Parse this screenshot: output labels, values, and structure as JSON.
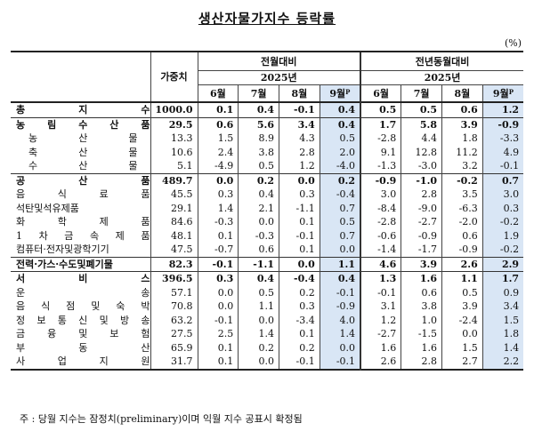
{
  "title": "생산자물가지수 등락률",
  "unit": "(%)",
  "header": {
    "weight": "가중치",
    "mom": "전월대비",
    "yoy": "전년동월대비",
    "year": "2025년",
    "months": [
      "6월",
      "7월",
      "8월",
      "9월"
    ],
    "prelim_mark": "P"
  },
  "rows": [
    {
      "name": "총 지 수",
      "type": "total",
      "weight": "1000.0",
      "mom": [
        "0.1",
        "0.4",
        "-0.1",
        "0.4"
      ],
      "yoy": [
        "0.5",
        "0.5",
        "0.6",
        "1.2"
      ]
    },
    {
      "name": "농 림 수 산 품",
      "type": "major",
      "weight": "29.5",
      "mom": [
        "0.6",
        "5.6",
        "3.4",
        "0.4"
      ],
      "yoy": [
        "1.7",
        "5.8",
        "3.9",
        "-0.9"
      ]
    },
    {
      "name": "농 산 물",
      "type": "sub",
      "weight": "13.3",
      "mom": [
        "1.5",
        "8.9",
        "4.3",
        "0.5"
      ],
      "yoy": [
        "-2.8",
        "4.4",
        "1.8",
        "-3.3"
      ]
    },
    {
      "name": "축 산 물",
      "type": "sub",
      "weight": "10.6",
      "mom": [
        "2.4",
        "3.8",
        "2.8",
        "2.0"
      ],
      "yoy": [
        "9.1",
        "12.8",
        "11.2",
        "4.9"
      ]
    },
    {
      "name": "수 산 물",
      "type": "sub",
      "weight": "5.1",
      "mom": [
        "-4.9",
        "0.5",
        "1.2",
        "-4.0"
      ],
      "yoy": [
        "-1.3",
        "-3.0",
        "3.2",
        "-0.1"
      ]
    },
    {
      "name": "공 산 품",
      "type": "major",
      "weight": "489.7",
      "mom": [
        "0.0",
        "0.2",
        "0.0",
        "0.2"
      ],
      "yoy": [
        "-0.9",
        "-1.0",
        "-0.2",
        "0.7"
      ]
    },
    {
      "name": "음 식 료 품",
      "type": "item",
      "weight": "45.5",
      "mom": [
        "0.3",
        "0.4",
        "0.3",
        "-0.4"
      ],
      "yoy": [
        "3.0",
        "2.8",
        "3.5",
        "3.0"
      ]
    },
    {
      "name": "석탄및석유제품",
      "type": "item",
      "weight": "29.1",
      "mom": [
        "1.4",
        "2.1",
        "-1.1",
        "0.7"
      ],
      "yoy": [
        "-8.4",
        "-9.0",
        "-6.3",
        "0.3"
      ]
    },
    {
      "name": "화 학 제 품",
      "type": "item",
      "weight": "84.6",
      "mom": [
        "-0.3",
        "0.0",
        "0.1",
        "0.5"
      ],
      "yoy": [
        "-2.8",
        "-2.7",
        "-2.0",
        "-0.2"
      ]
    },
    {
      "name": "1 차 금 속 제 품",
      "type": "item",
      "weight": "48.1",
      "mom": [
        "0.1",
        "-0.3",
        "-0.1",
        "0.7"
      ],
      "yoy": [
        "-0.6",
        "-0.9",
        "0.6",
        "1.9"
      ]
    },
    {
      "name": "컴퓨터·전자및광학기기",
      "type": "item",
      "weight": "47.5",
      "mom": [
        "-0.7",
        "0.6",
        "0.1",
        "0.0"
      ],
      "yoy": [
        "-1.4",
        "-1.7",
        "-0.9",
        "-0.2"
      ]
    },
    {
      "name": "전력·가스·수도및폐기물",
      "type": "major",
      "weight": "82.3",
      "mom": [
        "-0.1",
        "-1.1",
        "0.0",
        "1.1"
      ],
      "yoy": [
        "4.6",
        "3.9",
        "2.6",
        "2.9"
      ]
    },
    {
      "name": "서 비 스",
      "type": "major",
      "weight": "396.5",
      "mom": [
        "0.3",
        "0.4",
        "-0.4",
        "0.4"
      ],
      "yoy": [
        "1.3",
        "1.6",
        "1.1",
        "1.7"
      ]
    },
    {
      "name": "운 송",
      "type": "item",
      "weight": "57.1",
      "mom": [
        "0.0",
        "0.5",
        "0.2",
        "-0.1"
      ],
      "yoy": [
        "-0.1",
        "0.6",
        "0.5",
        "0.9"
      ]
    },
    {
      "name": "음 식 점 및 숙 박",
      "type": "item",
      "weight": "70.8",
      "mom": [
        "0.0",
        "1.1",
        "0.3",
        "-0.9"
      ],
      "yoy": [
        "3.1",
        "3.8",
        "3.9",
        "3.4"
      ]
    },
    {
      "name": "정 보 통 신 및 방 송",
      "type": "item",
      "weight": "63.2",
      "mom": [
        "-0.1",
        "0.0",
        "-3.4",
        "4.0"
      ],
      "yoy": [
        "1.2",
        "1.0",
        "-2.4",
        "1.5"
      ]
    },
    {
      "name": "금 융 및 보 험",
      "type": "item",
      "weight": "27.5",
      "mom": [
        "2.5",
        "1.4",
        "0.1",
        "1.4"
      ],
      "yoy": [
        "-2.7",
        "-1.5",
        "0.0",
        "1.8"
      ]
    },
    {
      "name": "부 동 산",
      "type": "item",
      "weight": "65.9",
      "mom": [
        "0.1",
        "0.2",
        "0.2",
        "0.0"
      ],
      "yoy": [
        "1.6",
        "1.6",
        "1.5",
        "1.4"
      ]
    },
    {
      "name": "사 업 지 원",
      "type": "item",
      "weight": "31.7",
      "mom": [
        "0.1",
        "0.0",
        "-0.1",
        "-0.1"
      ],
      "yoy": [
        "2.6",
        "2.8",
        "2.7",
        "2.2"
      ]
    }
  ],
  "note": "주 : 당월 지수는 잠정치(preliminary)이며 익월 지수 공표시 확정됨"
}
